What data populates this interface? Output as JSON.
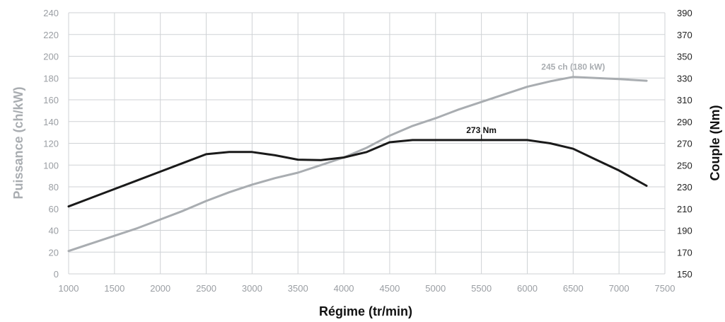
{
  "chart_data": {
    "type": "line",
    "xlabel": "Régime (tr/min)",
    "ylabel_left": "Puissance (ch/kW)",
    "ylabel_right": "Couple (Nm)",
    "xlim": [
      1000,
      7500
    ],
    "ylim_left": [
      0,
      240
    ],
    "ylim_right": [
      150,
      390
    ],
    "x_ticks": [
      1000,
      1500,
      2000,
      2500,
      3000,
      3500,
      4000,
      4500,
      5000,
      5500,
      6000,
      6500,
      7000,
      7500
    ],
    "y_ticks_left": [
      0,
      20,
      40,
      60,
      80,
      100,
      120,
      140,
      160,
      180,
      200,
      220,
      240
    ],
    "y_ticks_right": [
      150,
      170,
      190,
      210,
      230,
      250,
      270,
      290,
      310,
      330,
      350,
      370,
      390
    ],
    "grid": true,
    "series": [
      {
        "axis": "left",
        "color": "#a9adb1",
        "x": [
          1000,
          1250,
          1500,
          1750,
          2000,
          2250,
          2500,
          2750,
          3000,
          3250,
          3500,
          3750,
          4000,
          4250,
          4500,
          4750,
          5000,
          5250,
          5500,
          5750,
          6000,
          6250,
          6500,
          6750,
          7000,
          7300
        ],
        "y": [
          21,
          28,
          35,
          42,
          50,
          58,
          67,
          75,
          82,
          88,
          93,
          100,
          107,
          116,
          127,
          136,
          143,
          151,
          158,
          165,
          172,
          177,
          181,
          180,
          179,
          177.5
        ]
      },
      {
        "axis": "right",
        "color": "#1a1a1a",
        "x": [
          1000,
          1250,
          1500,
          1750,
          2000,
          2250,
          2500,
          2750,
          3000,
          3250,
          3500,
          3750,
          4000,
          4250,
          4500,
          4750,
          5000,
          5250,
          5500,
          5750,
          6000,
          6250,
          6500,
          6750,
          7000,
          7300
        ],
        "y": [
          212,
          220,
          228,
          236,
          244,
          252,
          260,
          262,
          262,
          259,
          255,
          254.5,
          257,
          262,
          271,
          273,
          273,
          273,
          273,
          273,
          273,
          270,
          265,
          255,
          245,
          231
        ]
      }
    ],
    "annotations": [
      {
        "text": "245 ch (180 kW)",
        "series": 0,
        "x": 6500,
        "y": 181
      },
      {
        "text": "273 Nm",
        "series": 1,
        "x": 5500,
        "y": 273
      }
    ]
  }
}
